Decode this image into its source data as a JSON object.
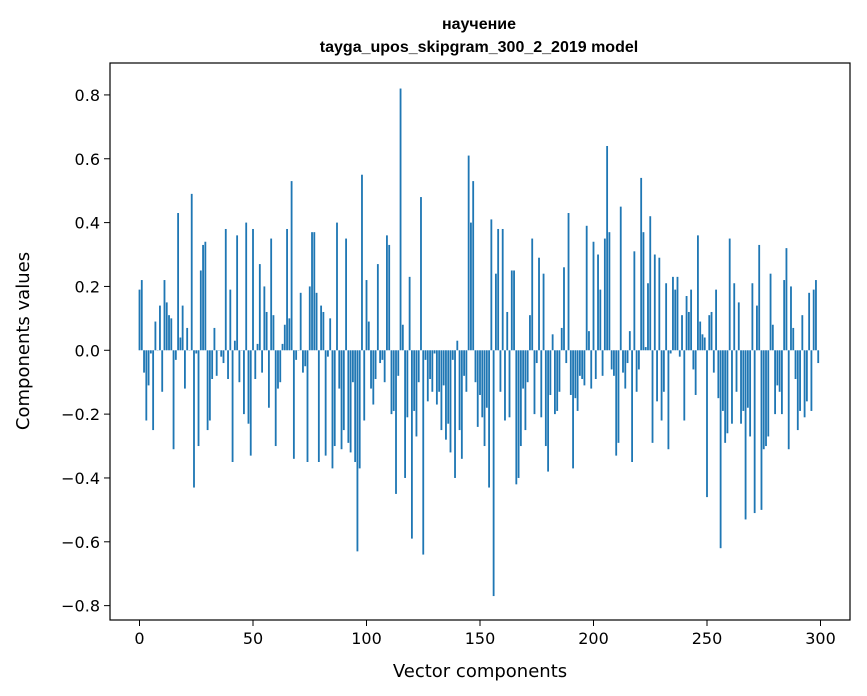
{
  "chart_data": {
    "type": "bar",
    "title": "научение\ntayga_upos_skipgram_300_2_2019 model",
    "title_lines": [
      "научение",
      "tayga_upos_skipgram_300_2_2019 model"
    ],
    "xlabel": "Vector components",
    "ylabel": "Components values",
    "xlim": [
      -13,
      313
    ],
    "ylim": [
      -0.845,
      0.9
    ],
    "xticks": [
      0,
      50,
      100,
      150,
      200,
      250,
      300
    ],
    "yticks": [
      -0.8,
      -0.6,
      -0.4,
      -0.2,
      0.0,
      0.2,
      0.4,
      0.6,
      0.8
    ],
    "ytick_labels": [
      "−0.8",
      "−0.6",
      "−0.4",
      "−0.2",
      "0.0",
      "0.2",
      "0.4",
      "0.6",
      "0.8"
    ],
    "bar_color": "#1f77b4",
    "grid": false,
    "values": [
      0.19,
      0.22,
      -0.07,
      -0.22,
      -0.11,
      -0.01,
      -0.25,
      0.09,
      0.0,
      0.14,
      -0.13,
      0.22,
      0.15,
      0.11,
      0.1,
      -0.31,
      -0.03,
      0.43,
      0.04,
      0.14,
      -0.12,
      0.07,
      0.0,
      0.49,
      -0.43,
      -0.01,
      -0.3,
      0.25,
      0.33,
      0.34,
      -0.25,
      -0.22,
      -0.09,
      0.07,
      -0.08,
      0.0,
      -0.02,
      -0.04,
      0.38,
      -0.09,
      0.19,
      -0.35,
      0.03,
      0.36,
      -0.1,
      0.0,
      -0.2,
      0.4,
      -0.23,
      -0.33,
      0.38,
      -0.09,
      0.02,
      0.27,
      -0.07,
      0.2,
      0.12,
      -0.18,
      0.35,
      0.11,
      -0.3,
      -0.12,
      -0.1,
      0.02,
      0.08,
      0.38,
      0.1,
      0.53,
      -0.34,
      -0.03,
      0.0,
      0.18,
      -0.07,
      -0.05,
      -0.35,
      0.2,
      0.37,
      0.37,
      0.18,
      -0.35,
      0.14,
      0.12,
      -0.33,
      -0.02,
      0.1,
      -0.37,
      -0.3,
      0.4,
      -0.12,
      -0.31,
      -0.25,
      0.35,
      -0.29,
      -0.32,
      -0.1,
      -0.35,
      -0.63,
      -0.37,
      0.55,
      -0.22,
      0.22,
      0.09,
      -0.12,
      -0.17,
      -0.09,
      0.27,
      -0.04,
      -0.03,
      -0.1,
      0.36,
      0.33,
      -0.2,
      -0.19,
      -0.45,
      -0.08,
      0.82,
      0.08,
      -0.4,
      -0.21,
      0.23,
      -0.59,
      -0.19,
      -0.27,
      -0.1,
      0.48,
      -0.64,
      -0.03,
      -0.16,
      -0.09,
      -0.13,
      -0.01,
      -0.17,
      -0.13,
      -0.25,
      -0.11,
      -0.28,
      -0.23,
      -0.32,
      -0.03,
      -0.4,
      0.03,
      -0.25,
      -0.34,
      -0.08,
      -0.13,
      0.61,
      0.4,
      0.53,
      -0.1,
      -0.24,
      -0.14,
      -0.21,
      -0.3,
      -0.18,
      -0.43,
      0.41,
      -0.77,
      0.24,
      0.38,
      -0.13,
      0.38,
      -0.22,
      0.12,
      -0.21,
      0.25,
      0.25,
      -0.42,
      -0.4,
      -0.3,
      -0.12,
      -0.25,
      -0.1,
      0.11,
      0.35,
      -0.2,
      -0.04,
      0.29,
      -0.21,
      0.24,
      -0.3,
      -0.38,
      -0.14,
      0.05,
      -0.2,
      -0.19,
      -0.13,
      0.07,
      0.26,
      -0.04,
      0.43,
      -0.14,
      -0.37,
      -0.15,
      -0.19,
      -0.08,
      -0.09,
      -0.11,
      0.39,
      0.06,
      -0.12,
      0.34,
      -0.09,
      0.3,
      0.19,
      -0.08,
      0.35,
      0.64,
      0.37,
      -0.06,
      -0.08,
      -0.33,
      -0.29,
      0.45,
      -0.07,
      -0.12,
      -0.04,
      0.06,
      -0.35,
      0.31,
      -0.13,
      -0.06,
      0.54,
      0.37,
      0.01,
      0.21,
      0.42,
      -0.29,
      0.3,
      -0.16,
      0.29,
      -0.22,
      -0.13,
      0.21,
      -0.31,
      -0.01,
      0.23,
      0.19,
      0.23,
      -0.02,
      0.11,
      -0.22,
      0.17,
      0.12,
      0.19,
      -0.06,
      -0.14,
      0.36,
      0.09,
      0.05,
      0.04,
      -0.46,
      0.11,
      0.12,
      -0.07,
      0.19,
      -0.15,
      -0.62,
      -0.19,
      -0.29,
      -0.26,
      0.35,
      -0.23,
      0.21,
      -0.13,
      0.15,
      -0.23,
      -0.19,
      -0.53,
      -0.18,
      -0.27,
      0.21,
      -0.51,
      0.14,
      0.33,
      -0.5,
      -0.31,
      -0.3,
      -0.27,
      0.24,
      0.08,
      -0.2,
      -0.11,
      -0.13,
      -0.2,
      0.22,
      0.32,
      -0.31,
      0.2,
      0.07,
      -0.09,
      -0.25,
      -0.19,
      0.11,
      -0.21,
      -0.16,
      0.18,
      -0.19,
      0.19,
      0.22,
      -0.04
    ]
  }
}
